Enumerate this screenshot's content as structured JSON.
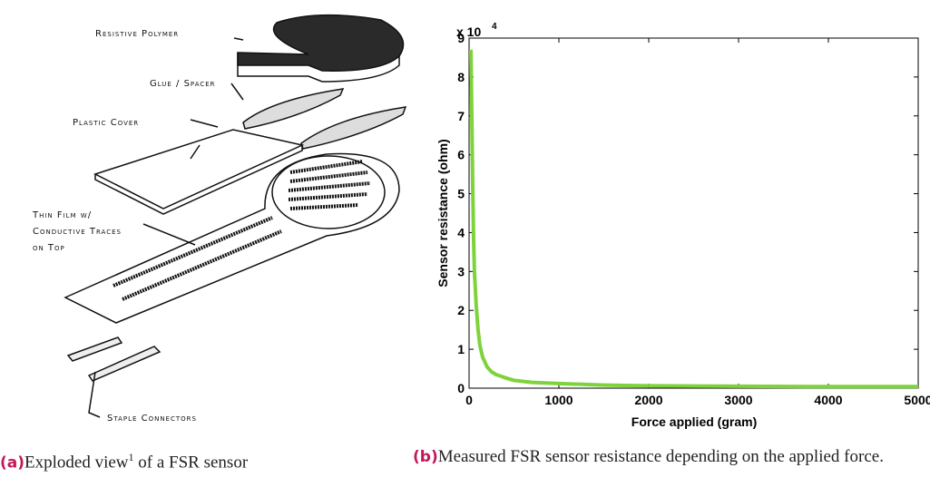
{
  "figure": {
    "drawing_labels": [
      "Resistive Polymer",
      "Glue / Spacer",
      "Plastic Cover",
      "Thin Film w/",
      "Conductive Traces",
      "on Top",
      "Staple Connectors"
    ],
    "captions": [
      {
        "label": "(a)",
        "text": "Exploded view",
        "footnote": "1",
        "rest": " of a FSR sensor"
      },
      {
        "label": "(b)",
        "text": "Measured FSR sensor resistance depending on the applied force."
      }
    ]
  },
  "chart_data": {
    "type": "line",
    "xlabel": "Force applied (gram)",
    "ylabel": "Sensor resistance (ohm)",
    "y_multiplier": "x 10",
    "y_multiplier_exponent": "4",
    "x": [
      20,
      30,
      40,
      50,
      60,
      80,
      100,
      120,
      150,
      200,
      250,
      300,
      400,
      500,
      700,
      1000,
      1500,
      2000,
      3000,
      4000,
      5000
    ],
    "values": [
      8.7,
      7.0,
      5.2,
      3.8,
      3.0,
      2.1,
      1.5,
      1.1,
      0.8,
      0.55,
      0.42,
      0.35,
      0.27,
      0.2,
      0.15,
      0.12,
      0.08,
      0.06,
      0.05,
      0.04,
      0.04
    ],
    "color": "#7ed33a",
    "xlim": [
      0,
      5000
    ],
    "ylim": [
      0,
      9
    ],
    "xticks": [
      0,
      1000,
      2000,
      3000,
      4000,
      5000
    ],
    "yticks": [
      0,
      1,
      2,
      3,
      4,
      5,
      6,
      7,
      8,
      9
    ]
  }
}
